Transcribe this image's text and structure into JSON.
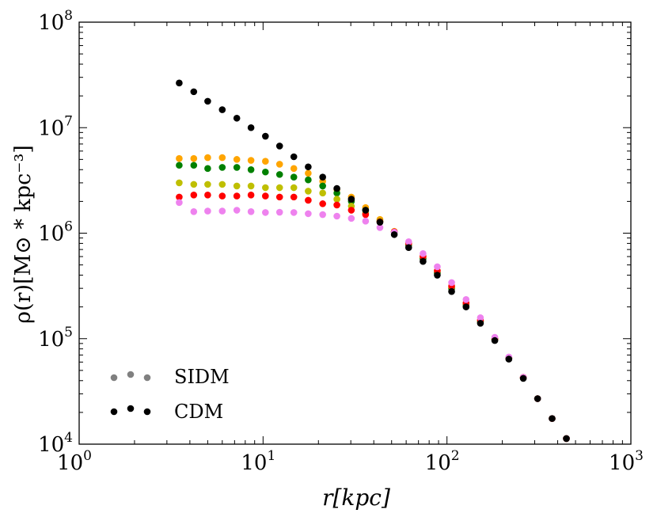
{
  "chart_data": {
    "type": "scatter",
    "xscale": "log",
    "yscale": "log",
    "xlim": [
      1,
      1000
    ],
    "ylim": [
      10000,
      100000000
    ],
    "xlabel": "r[kpc]",
    "ylabel": "ρ(r)[M⊙ * kpc⁻³]",
    "x_ticks": [
      {
        "base": "10",
        "exp": "0",
        "value": 1
      },
      {
        "base": "10",
        "exp": "1",
        "value": 10
      },
      {
        "base": "10",
        "exp": "2",
        "value": 100
      },
      {
        "base": "10",
        "exp": "3",
        "value": 1000
      }
    ],
    "y_ticks": [
      {
        "base": "10",
        "exp": "4",
        "value": 10000
      },
      {
        "base": "10",
        "exp": "5",
        "value": 100000
      },
      {
        "base": "10",
        "exp": "6",
        "value": 1000000
      },
      {
        "base": "10",
        "exp": "7",
        "value": 10000000
      },
      {
        "base": "10",
        "exp": "8",
        "value": 100000000
      }
    ],
    "legend": [
      {
        "label": "SIDM",
        "color": "#808080"
      },
      {
        "label": "CDM",
        "color": "#000000"
      }
    ],
    "x": [
      3.5,
      4.2,
      5.0,
      6.0,
      7.2,
      8.6,
      10.3,
      12.3,
      14.7,
      17.6,
      21.1,
      25.2,
      30.2,
      36.1,
      43.2,
      51.7,
      61.9,
      74.1,
      88.6,
      106,
      127,
      152,
      182,
      217,
      260,
      311,
      373,
      446
    ],
    "series": [
      {
        "name": "CDM",
        "color": "#000000",
        "values": [
          26500000,
          21900000,
          17800000,
          14800000,
          12300000,
          10000000,
          8300000,
          6700000,
          5300000,
          4250000,
          3400000,
          2650000,
          2100000,
          1650000,
          1270000,
          970000,
          730000,
          540000,
          400000,
          280000,
          200000,
          140000,
          96000,
          64000,
          42000,
          27000,
          17500,
          11300
        ]
      },
      {
        "name": "SIDM orange",
        "color": "#FFA500",
        "values": [
          5100000,
          5100000,
          5200000,
          5200000,
          5000000,
          4900000,
          4800000,
          4500000,
          4100000,
          3700000,
          3100000,
          2600000,
          2200000,
          1750000,
          1350000,
          1040000,
          780000,
          580000,
          420000,
          300000,
          210000,
          145000,
          98000,
          65000,
          42500,
          27000,
          17500,
          11300
        ]
      },
      {
        "name": "SIDM green",
        "color": "#008000",
        "values": [
          4400000,
          4400000,
          4100000,
          4200000,
          4200000,
          4000000,
          3800000,
          3600000,
          3400000,
          3200000,
          2800000,
          2400000,
          2000000,
          1650000,
          1300000,
          1020000,
          770000,
          570000,
          420000,
          300000,
          210000,
          145000,
          98000,
          65000,
          42500,
          27000,
          17500,
          11300
        ]
      },
      {
        "name": "SIDM olive",
        "color": "#BFBF00",
        "values": [
          3000000,
          2900000,
          2900000,
          2900000,
          2800000,
          2800000,
          2700000,
          2700000,
          2700000,
          2500000,
          2400000,
          2100000,
          1800000,
          1550000,
          1300000,
          1030000,
          800000,
          600000,
          440000,
          310000,
          215000,
          148000,
          99000,
          66000,
          43000,
          27000,
          17500,
          11300
        ]
      },
      {
        "name": "SIDM red",
        "color": "#FF0000",
        "values": [
          2200000,
          2300000,
          2300000,
          2250000,
          2250000,
          2300000,
          2250000,
          2200000,
          2200000,
          2050000,
          1900000,
          1850000,
          1650000,
          1500000,
          1280000,
          1030000,
          800000,
          600000,
          440000,
          315000,
          218000,
          150000,
          100000,
          66000,
          43000,
          27000,
          17500,
          11300
        ]
      },
      {
        "name": "SIDM violet",
        "color": "#EE82EE",
        "values": [
          1950000,
          1600000,
          1620000,
          1620000,
          1650000,
          1600000,
          1570000,
          1580000,
          1570000,
          1530000,
          1500000,
          1450000,
          1380000,
          1300000,
          1130000,
          1020000,
          830000,
          640000,
          480000,
          340000,
          235000,
          158000,
          103000,
          67000,
          43000,
          27000,
          17500,
          11300
        ]
      }
    ]
  }
}
